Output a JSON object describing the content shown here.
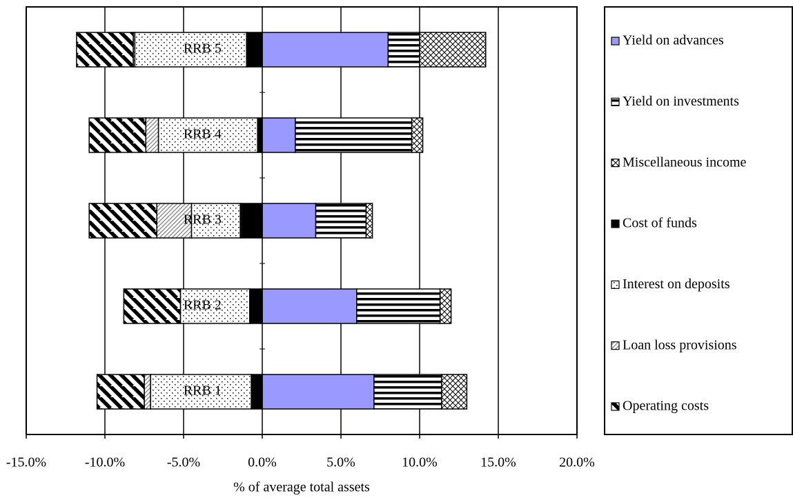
{
  "chart_data": {
    "type": "hbar-stacked",
    "x_label": "% of average total assets",
    "categories": [
      "RRB 1",
      "RRB 2",
      "RRB 3",
      "RRB 4",
      "RRB 5"
    ],
    "series": [
      {
        "name": "Yield on advances",
        "color": "#9999ff",
        "values": [
          7.1,
          6.0,
          3.4,
          2.1,
          8.0
        ]
      },
      {
        "name": "Yield on investments",
        "color": "#000000",
        "values": [
          4.3,
          5.3,
          3.2,
          7.4,
          2.0
        ]
      },
      {
        "name": "Miscellaneous income",
        "color": "#000000",
        "values": [
          1.6,
          0.7,
          0.4,
          0.7,
          4.2
        ]
      },
      {
        "name": "Cost of funds",
        "color": "#000000",
        "values": [
          -0.7,
          -0.8,
          -1.4,
          -0.3,
          -1.0
        ]
      },
      {
        "name": "Interest on deposits",
        "color": "#000000",
        "values": [
          -6.4,
          -4.4,
          -3.1,
          -6.3,
          -7.1
        ]
      },
      {
        "name": "Loan loss provisions",
        "color": "#808080",
        "values": [
          -0.4,
          0,
          -2.2,
          -0.8,
          -0.1
        ]
      },
      {
        "name": "Operating costs",
        "color": "#000000",
        "values": [
          -3.0,
          -3.6,
          -4.3,
          -3.6,
          -3.6
        ]
      }
    ],
    "xlim": [
      -15,
      20
    ],
    "xticks": [
      {
        "value": -15,
        "label": "-15.0%"
      },
      {
        "value": -10,
        "label": "-10.0%"
      },
      {
        "value": -5,
        "label": "-5.0%"
      },
      {
        "value": 0,
        "label": "0.0%"
      },
      {
        "value": 5,
        "label": "5.0%"
      },
      {
        "value": 10,
        "label": "10.0%"
      },
      {
        "value": 15,
        "label": "15.0%"
      },
      {
        "value": 20,
        "label": "20.0%"
      }
    ],
    "grid": true,
    "legend": "right"
  }
}
